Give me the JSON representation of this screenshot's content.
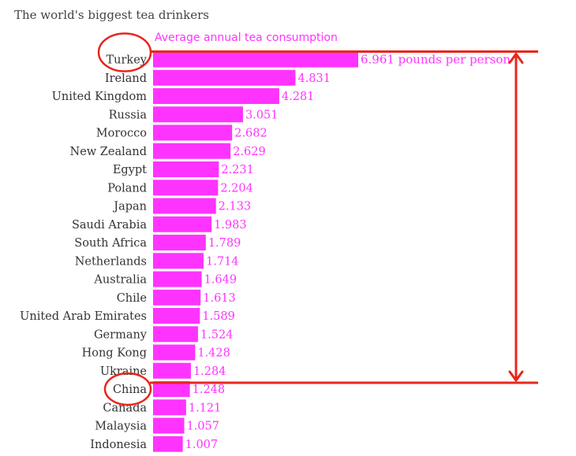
{
  "colors": {
    "bar": "#ff33ff",
    "label": "#ff33ff",
    "annotation": "#e8261c"
  },
  "chart_data": {
    "type": "bar",
    "orientation": "horizontal",
    "title": "The world's biggest tea drinkers",
    "subtitle": "Average annual tea consumption",
    "categories": [
      "Turkey",
      "Ireland",
      "United Kingdom",
      "Russia",
      "Morocco",
      "New Zealand",
      "Egypt",
      "Poland",
      "Japan",
      "Saudi Arabia",
      "South Africa",
      "Netherlands",
      "Australia",
      "Chile",
      "United Arab Emirates",
      "Germany",
      "Hong Kong",
      "Ukraine",
      "China",
      "Canada",
      "Malaysia",
      "Indonesia"
    ],
    "values": [
      6.961,
      4.831,
      4.281,
      3.051,
      2.682,
      2.629,
      2.231,
      2.204,
      2.133,
      1.983,
      1.789,
      1.714,
      1.649,
      1.613,
      1.589,
      1.524,
      1.428,
      1.284,
      1.248,
      1.121,
      1.057,
      1.007
    ],
    "value_labels": [
      "6.961 pounds per person",
      "4.831",
      "4.281",
      "3.051",
      "2.682",
      "2.629",
      "2.231",
      "2.204",
      "2.133",
      "1.983",
      "1.789",
      "1.714",
      "1.649",
      "1.613",
      "1.589",
      "1.524",
      "1.428",
      "1.284",
      "1.248",
      "1.121",
      "1.057",
      "1.007"
    ],
    "xlim": [
      0,
      6.961
    ],
    "grid": false,
    "legend": "none",
    "annotations": {
      "circled_categories": [
        "Turkey",
        "China"
      ],
      "bracket_between": [
        "Turkey",
        "China"
      ]
    }
  }
}
